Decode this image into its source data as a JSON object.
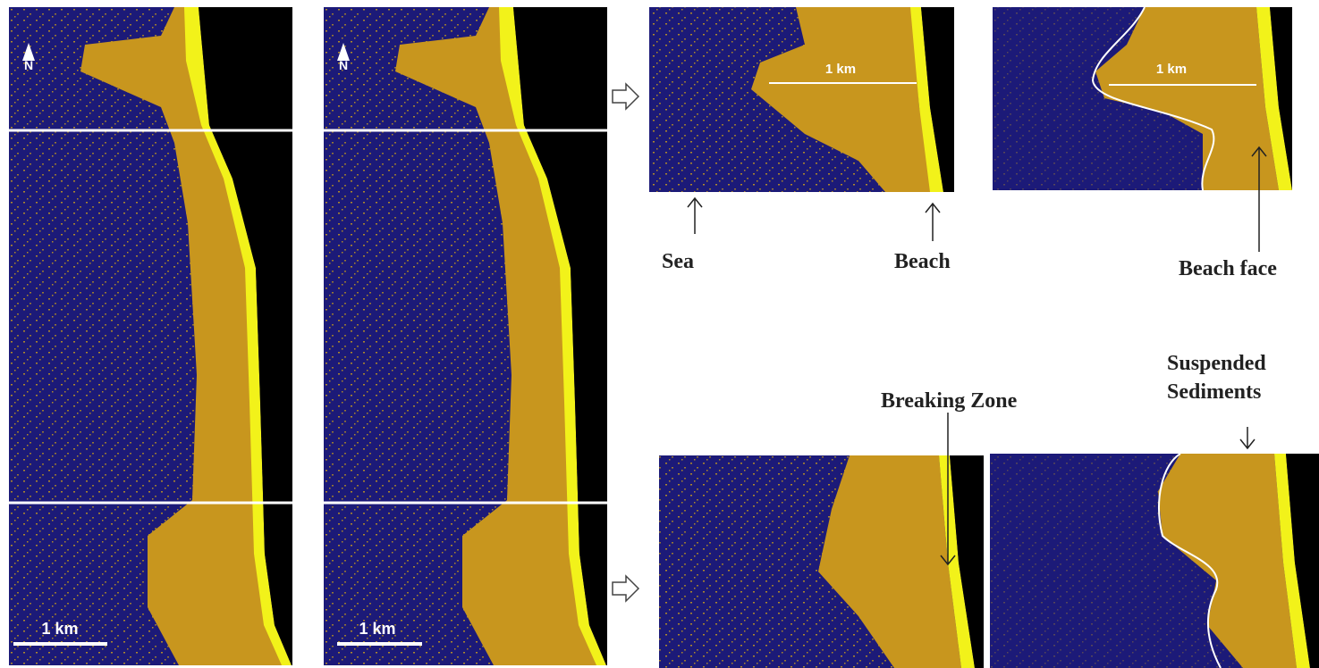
{
  "panels": [
    {
      "north": "N",
      "scale": "1 km"
    },
    {
      "north": "N",
      "scale": "1 km"
    }
  ],
  "insets": [
    {
      "scale": "1 km"
    },
    {
      "scale": "1 km"
    }
  ],
  "labels": {
    "sea": "Sea",
    "beach": "Beach",
    "beach_face": "Beach face",
    "breaking_zone": "Breaking Zone",
    "suspended_sediments": [
      "Suspended",
      "Sediments"
    ]
  }
}
